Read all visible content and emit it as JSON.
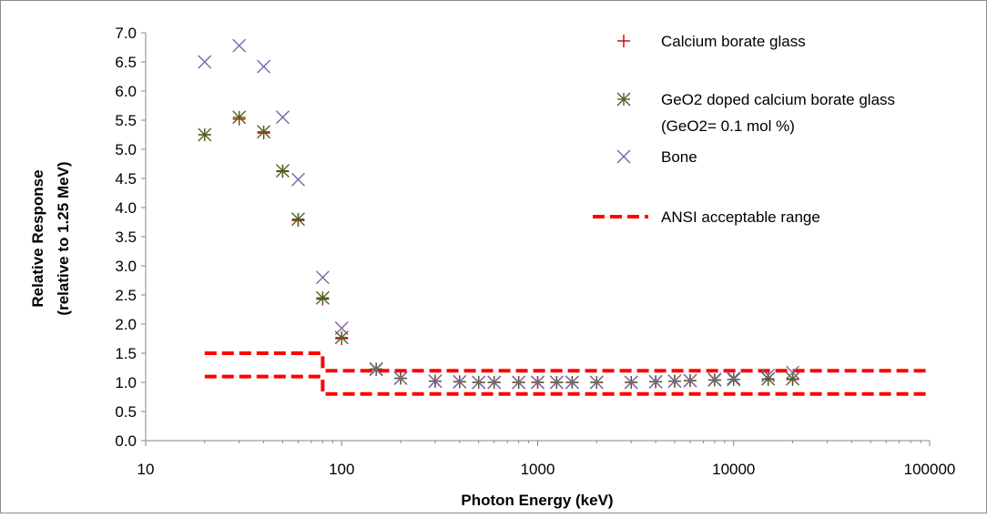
{
  "chart_data": {
    "type": "scatter",
    "xscale": "log",
    "xlabel": "Photon Energy (keV)",
    "ylabel_line1": "Relative Response",
    "ylabel_line2": "(relative to 1.25 MeV)",
    "xlim": [
      10,
      100000
    ],
    "ylim": [
      0,
      7
    ],
    "xticks": [
      10,
      100,
      1000,
      10000,
      100000
    ],
    "xtick_labels": [
      "10",
      "100",
      "1000",
      "10000",
      "100000"
    ],
    "yticks": [
      0,
      0.5,
      1,
      1.5,
      2,
      2.5,
      3,
      3.5,
      4,
      4.5,
      5,
      5.5,
      6,
      6.5,
      7
    ],
    "ytick_labels": [
      "0.0",
      "0.5",
      "1.0",
      "1.5",
      "2.0",
      "2.5",
      "3.0",
      "3.5",
      "4.0",
      "4.5",
      "5.0",
      "5.5",
      "6.0",
      "6.5",
      "7.0"
    ],
    "grid": false,
    "legend_position": "top-right",
    "series": [
      {
        "name": "Calcium borate glass",
        "marker": "plus",
        "color": "#cc0000",
        "x": [
          20,
          30,
          40,
          50,
          60,
          80,
          100,
          150,
          200,
          300,
          400,
          500,
          600,
          800,
          1000,
          1250,
          1500,
          2000,
          3000,
          4000,
          5000,
          6000,
          8000,
          10000,
          15000,
          20000
        ],
        "y": [
          5.25,
          5.52,
          5.28,
          4.62,
          3.78,
          2.43,
          1.75,
          1.22,
          1.07,
          1.02,
          1.01,
          1.0,
          1.0,
          1.0,
          1.0,
          1.0,
          1.0,
          1.0,
          1.0,
          1.01,
          1.02,
          1.03,
          1.04,
          1.05,
          1.05,
          1.05
        ]
      },
      {
        "name": "GeO2 doped calcium borate glass",
        "name_line2": "(GeO2= 0.1 mol %)",
        "marker": "asterisk",
        "color": "#4f6228",
        "x": [
          20,
          30,
          40,
          50,
          60,
          80,
          100,
          150,
          200,
          300,
          400,
          500,
          600,
          800,
          1000,
          1250,
          1500,
          2000,
          3000,
          4000,
          5000,
          6000,
          8000,
          10000,
          15000,
          20000
        ],
        "y": [
          5.25,
          5.55,
          5.3,
          4.63,
          3.8,
          2.45,
          1.77,
          1.23,
          1.07,
          1.02,
          1.01,
          1.0,
          1.0,
          1.0,
          1.0,
          1.0,
          1.0,
          1.0,
          1.0,
          1.01,
          1.02,
          1.03,
          1.04,
          1.05,
          1.06,
          1.06
        ]
      },
      {
        "name": "Bone",
        "marker": "x",
        "color": "#7f63a8",
        "x": [
          20,
          30,
          40,
          50,
          60,
          80,
          100,
          150,
          200,
          300,
          400,
          500,
          600,
          800,
          1000,
          1250,
          1500,
          2000,
          3000,
          4000,
          5000,
          6000,
          8000,
          10000,
          15000,
          20000
        ],
        "y": [
          6.5,
          6.78,
          6.42,
          5.55,
          4.48,
          2.8,
          1.93,
          1.22,
          1.07,
          1.02,
          1.01,
          1.0,
          1.0,
          1.0,
          1.0,
          1.0,
          1.0,
          1.0,
          1.0,
          1.01,
          1.02,
          1.03,
          1.05,
          1.07,
          1.12,
          1.17
        ]
      }
    ],
    "reference_lines": {
      "name": "ANSI acceptable range",
      "color": "#ff0000",
      "style": "dashed",
      "upper": {
        "x": [
          20,
          80,
          80,
          100000
        ],
        "y": [
          1.5,
          1.5,
          1.2,
          1.2
        ]
      },
      "lower": {
        "x": [
          20,
          80,
          80,
          100000
        ],
        "y": [
          1.1,
          1.1,
          0.8,
          0.8
        ]
      }
    }
  }
}
